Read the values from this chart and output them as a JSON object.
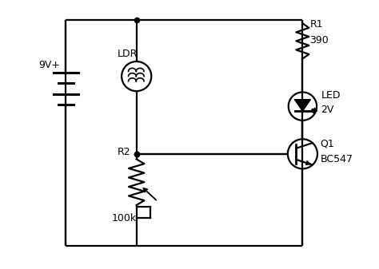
{
  "bg_color": "#ffffff",
  "line_color": "#000000",
  "lw": 1.6,
  "fs": 9,
  "figsize": [
    4.74,
    3.37
  ],
  "dpi": 100,
  "xlim": [
    0,
    10
  ],
  "ylim": [
    0,
    7.5
  ]
}
